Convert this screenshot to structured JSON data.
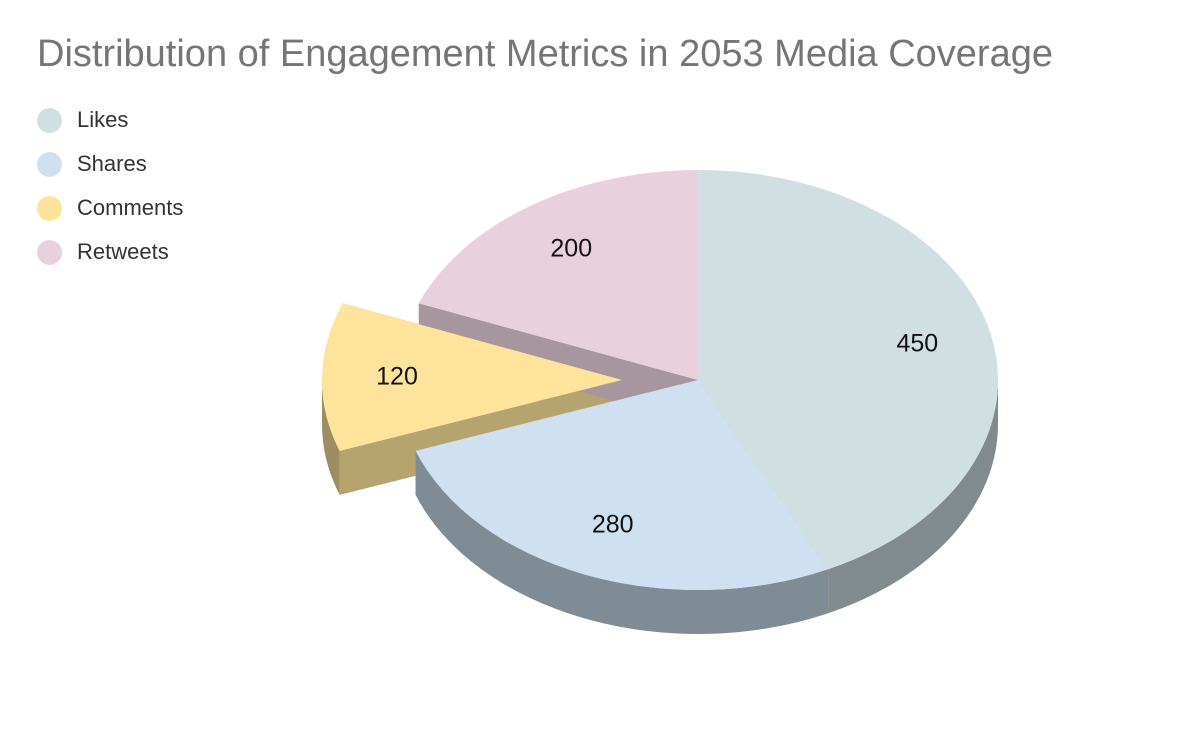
{
  "chart_data": {
    "type": "pie",
    "title": "Distribution of Engagement Metrics in 2053 Media Coverage",
    "legend_position": "top-left",
    "three_d": true,
    "exploded": "Comments",
    "categories": [
      "Likes",
      "Shares",
      "Comments",
      "Retweets"
    ],
    "values": [
      450,
      280,
      120,
      200
    ],
    "colors": [
      "#d0dfe2",
      "#cfe1f1",
      "#fde49a",
      "#e8d1dc"
    ],
    "value_labels": [
      "450",
      "280",
      "120",
      "200"
    ]
  }
}
